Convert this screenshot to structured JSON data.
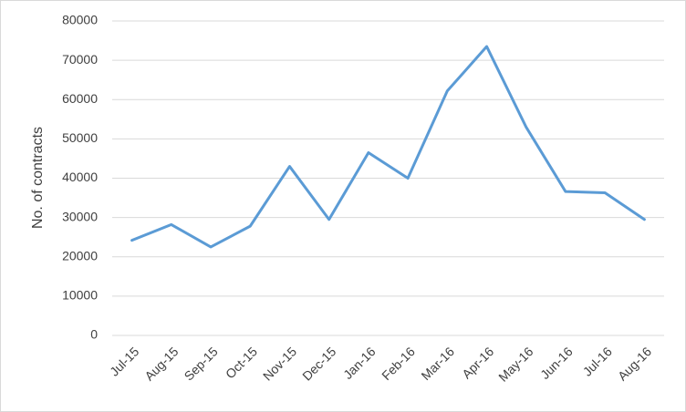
{
  "chart_data": {
    "type": "line",
    "y_label": "No. of contracts",
    "categories": [
      "Jul-15",
      "Aug-15",
      "Sep-15",
      "Oct-15",
      "Nov-15",
      "Dec-15",
      "Jan-16",
      "Feb-16",
      "Mar-16",
      "Apr-16",
      "May-16",
      "Jun-16",
      "Jul-16",
      "Aug-16"
    ],
    "values": [
      24200,
      28200,
      22500,
      27800,
      43000,
      29500,
      46500,
      40000,
      62200,
      73500,
      53000,
      36600,
      36300,
      29500
    ],
    "color": "#5b9bd5",
    "ylim": [
      0,
      80000
    ],
    "yticks": [
      0,
      10000,
      20000,
      30000,
      40000,
      50000,
      60000,
      70000,
      80000
    ],
    "grid": true
  }
}
